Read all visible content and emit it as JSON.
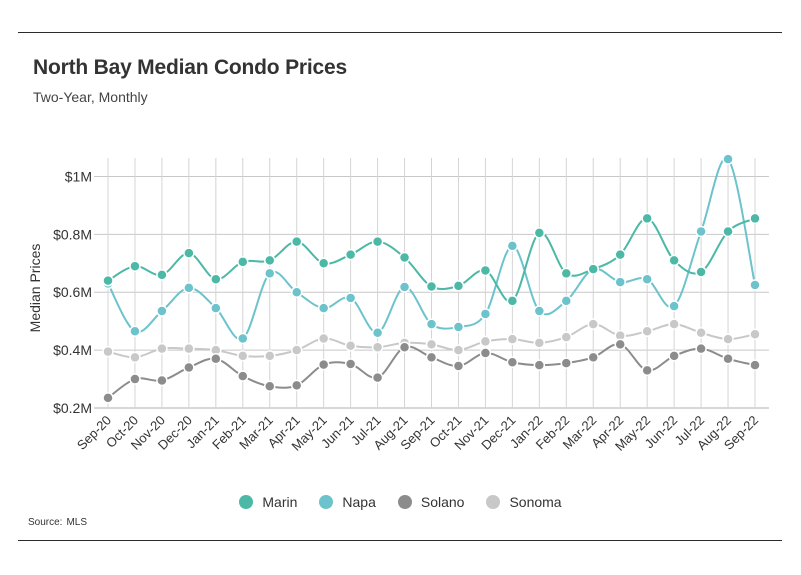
{
  "header": {
    "title": "North Bay Median Condo Prices",
    "subtitle": "Two-Year, Monthly"
  },
  "source": {
    "label": "Source:",
    "value": "MLS"
  },
  "chart_data": {
    "type": "line",
    "title": "North Bay Median Condo Prices",
    "subtitle": "Two-Year, Monthly",
    "xlabel": "",
    "ylabel": "Median Prices",
    "ylim": [
      0.2,
      1.05
    ],
    "yticks": [
      0.2,
      0.4,
      0.6,
      0.8,
      1.0
    ],
    "ytick_labels": [
      "$0.2M",
      "$0.4M",
      "$0.6M",
      "$0.8M",
      "$1M"
    ],
    "grid": true,
    "legend_position": "bottom",
    "categories": [
      "Sep-20",
      "Oct-20",
      "Nov-20",
      "Dec-20",
      "Jan-21",
      "Feb-21",
      "Mar-21",
      "Apr-21",
      "May-21",
      "Jun-21",
      "Jul-21",
      "Aug-21",
      "Sep-21",
      "Oct-21",
      "Nov-21",
      "Dec-21",
      "Jan-22",
      "Feb-22",
      "Mar-22",
      "Apr-22",
      "May-22",
      "Jun-22",
      "Jul-22",
      "Aug-22",
      "Sep-22"
    ],
    "series": [
      {
        "name": "Marin",
        "color": "#4cb8a6",
        "values": [
          0.64,
          0.69,
          0.66,
          0.735,
          0.645,
          0.705,
          0.71,
          0.775,
          0.7,
          0.73,
          0.775,
          0.72,
          0.62,
          0.622,
          0.675,
          0.57,
          0.805,
          0.665,
          0.68,
          0.73,
          0.855,
          0.71,
          0.67,
          0.81,
          0.855
        ]
      },
      {
        "name": "Napa",
        "color": "#6cc3cc",
        "values": [
          0.63,
          0.465,
          0.535,
          0.615,
          0.545,
          0.44,
          0.665,
          0.6,
          0.545,
          0.58,
          0.46,
          0.618,
          0.49,
          0.48,
          0.525,
          0.76,
          0.535,
          0.57,
          0.68,
          0.635,
          0.645,
          0.552,
          0.81,
          1.06,
          0.625
        ]
      },
      {
        "name": "Solano",
        "color": "#8c8c8c",
        "values": [
          0.235,
          0.3,
          0.295,
          0.34,
          0.37,
          0.31,
          0.275,
          0.278,
          0.35,
          0.352,
          0.305,
          0.41,
          0.375,
          0.345,
          0.39,
          0.358,
          0.348,
          0.355,
          0.375,
          0.42,
          0.33,
          0.38,
          0.405,
          0.37,
          0.348
        ]
      },
      {
        "name": "Sonoma",
        "color": "#c8c8c8",
        "values": [
          0.395,
          0.375,
          0.405,
          0.405,
          0.4,
          0.38,
          0.38,
          0.4,
          0.44,
          0.415,
          0.41,
          0.425,
          0.42,
          0.4,
          0.43,
          0.438,
          0.425,
          0.445,
          0.49,
          0.45,
          0.465,
          0.49,
          0.46,
          0.438,
          0.455
        ]
      }
    ]
  }
}
